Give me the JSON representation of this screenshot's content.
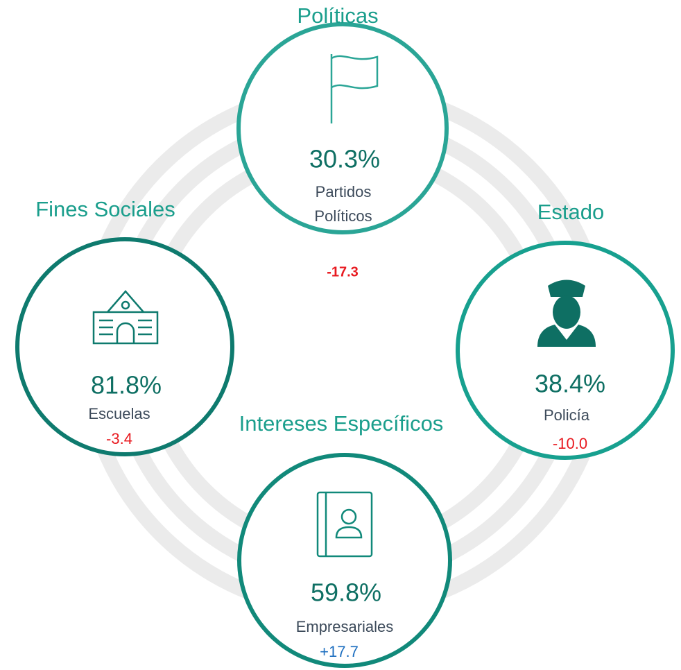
{
  "items": [
    {
      "heading": "Políticas",
      "value": "30.3%",
      "label": [
        "Partidos",
        "Políticos"
      ],
      "change": "-17.3"
    },
    {
      "heading": "Fines Sociales",
      "value": "81.8%",
      "label": [
        "Escuelas"
      ],
      "change": "-3.4"
    },
    {
      "heading": "Estado",
      "value": "38.4%",
      "label": [
        "Policía"
      ],
      "change": "-10.0"
    },
    {
      "heading": "Intereses Específicos",
      "value": "59.8%",
      "label": [
        "Empresariales"
      ],
      "change": "+17.7"
    }
  ]
}
